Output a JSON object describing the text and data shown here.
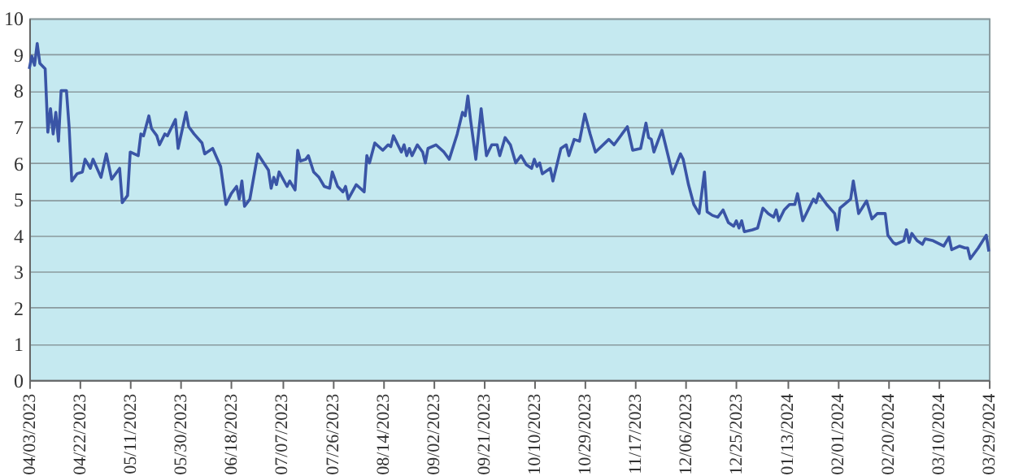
{
  "chart_data": {
    "type": "line",
    "x": [
      "2023-04-03",
      "2023-04-04",
      "2023-04-05",
      "2023-04-06",
      "2023-04-07",
      "2023-04-09",
      "2023-04-10",
      "2023-04-11",
      "2023-04-12",
      "2023-04-13",
      "2023-04-14",
      "2023-04-15",
      "2023-04-17",
      "2023-04-18",
      "2023-04-19",
      "2023-04-21",
      "2023-04-23",
      "2023-04-24",
      "2023-04-26",
      "2023-04-27",
      "2023-04-30",
      "2023-05-02",
      "2023-05-04",
      "2023-05-07",
      "2023-05-08",
      "2023-05-10",
      "2023-05-11",
      "2023-05-14",
      "2023-05-15",
      "2023-05-16",
      "2023-05-18",
      "2023-05-19",
      "2023-05-21",
      "2023-05-22",
      "2023-05-24",
      "2023-05-25",
      "2023-05-28",
      "2023-05-29",
      "2023-06-01",
      "2023-06-02",
      "2023-06-04",
      "2023-06-07",
      "2023-06-08",
      "2023-06-11",
      "2023-06-14",
      "2023-06-16",
      "2023-06-18",
      "2023-06-20",
      "2023-06-21",
      "2023-06-22",
      "2023-06-23",
      "2023-06-25",
      "2023-06-28",
      "2023-07-02",
      "2023-07-03",
      "2023-07-04",
      "2023-07-05",
      "2023-07-06",
      "2023-07-09",
      "2023-07-10",
      "2023-07-12",
      "2023-07-13",
      "2023-07-14",
      "2023-07-16",
      "2023-07-17",
      "2023-07-19",
      "2023-07-21",
      "2023-07-23",
      "2023-07-25",
      "2023-07-26",
      "2023-07-28",
      "2023-07-30",
      "2023-07-31",
      "2023-08-01",
      "2023-08-04",
      "2023-08-07",
      "2023-08-08",
      "2023-08-09",
      "2023-08-11",
      "2023-08-14",
      "2023-08-16",
      "2023-08-17",
      "2023-08-18",
      "2023-08-21",
      "2023-08-22",
      "2023-08-23",
      "2023-08-24",
      "2023-08-25",
      "2023-08-27",
      "2023-08-29",
      "2023-08-30",
      "2023-08-31",
      "2023-09-03",
      "2023-09-06",
      "2023-09-08",
      "2023-09-11",
      "2023-09-13",
      "2023-09-14",
      "2023-09-15",
      "2023-09-16",
      "2023-09-18",
      "2023-09-20",
      "2023-09-22",
      "2023-09-24",
      "2023-09-26",
      "2023-09-27",
      "2023-09-29",
      "2023-10-01",
      "2023-10-03",
      "2023-10-05",
      "2023-10-07",
      "2023-10-09",
      "2023-10-10",
      "2023-10-11",
      "2023-10-12",
      "2023-10-13",
      "2023-10-16",
      "2023-10-17",
      "2023-10-20",
      "2023-10-22",
      "2023-10-23",
      "2023-10-25",
      "2023-10-27",
      "2023-10-29",
      "2023-10-31",
      "2023-11-02",
      "2023-11-07",
      "2023-11-09",
      "2023-11-14",
      "2023-11-16",
      "2023-11-19",
      "2023-11-21",
      "2023-11-22",
      "2023-11-23",
      "2023-11-24",
      "2023-11-27",
      "2023-12-01",
      "2023-12-04",
      "2023-12-05",
      "2023-12-07",
      "2023-12-09",
      "2023-12-11",
      "2023-12-13",
      "2023-12-14",
      "2023-12-16",
      "2023-12-18",
      "2023-12-20",
      "2023-12-22",
      "2023-12-24",
      "2023-12-25",
      "2023-12-26",
      "2023-12-27",
      "2023-12-28",
      "2023-12-31",
      "2024-01-02",
      "2024-01-04",
      "2024-01-06",
      "2024-01-08",
      "2024-01-09",
      "2024-01-10",
      "2024-01-12",
      "2024-01-14",
      "2024-01-16",
      "2024-01-17",
      "2024-01-19",
      "2024-01-23",
      "2024-01-24",
      "2024-01-25",
      "2024-01-28",
      "2024-01-31",
      "2024-02-01",
      "2024-02-02",
      "2024-02-06",
      "2024-02-07",
      "2024-02-09",
      "2024-02-12",
      "2024-02-14",
      "2024-02-16",
      "2024-02-19",
      "2024-02-20",
      "2024-02-22",
      "2024-02-23",
      "2024-02-26",
      "2024-02-27",
      "2024-02-28",
      "2024-02-29",
      "2024-03-02",
      "2024-03-04",
      "2024-03-05",
      "2024-03-08",
      "2024-03-12",
      "2024-03-14",
      "2024-03-15",
      "2024-03-18",
      "2024-03-20",
      "2024-03-21",
      "2024-03-22",
      "2024-03-25",
      "2024-03-28",
      "2024-03-29"
    ],
    "series": [
      {
        "color": "#3a55a6",
        "values": [
          8.6,
          8.95,
          8.7,
          9.3,
          8.75,
          8.6,
          6.85,
          7.5,
          6.8,
          7.4,
          6.6,
          8.0,
          8.0,
          7.0,
          5.5,
          5.7,
          5.75,
          6.1,
          5.85,
          6.1,
          5.6,
          6.25,
          5.55,
          5.85,
          4.9,
          5.1,
          6.3,
          6.2,
          6.8,
          6.75,
          7.3,
          6.95,
          6.75,
          6.5,
          6.8,
          6.75,
          7.2,
          6.4,
          7.4,
          7.0,
          6.8,
          6.55,
          6.25,
          6.4,
          5.9,
          4.85,
          5.15,
          5.35,
          5.0,
          5.5,
          4.8,
          5.0,
          6.25,
          5.8,
          5.3,
          5.6,
          5.4,
          5.75,
          5.35,
          5.5,
          5.25,
          6.35,
          6.05,
          6.1,
          6.2,
          5.75,
          5.6,
          5.35,
          5.3,
          5.75,
          5.35,
          5.2,
          5.35,
          5.0,
          5.4,
          5.2,
          6.2,
          6.0,
          6.55,
          6.35,
          6.5,
          6.45,
          6.75,
          6.3,
          6.5,
          6.2,
          6.4,
          6.2,
          6.5,
          6.3,
          6.0,
          6.4,
          6.5,
          6.3,
          6.1,
          6.8,
          7.4,
          7.3,
          7.85,
          7.2,
          6.1,
          7.5,
          6.2,
          6.5,
          6.5,
          6.2,
          6.7,
          6.5,
          6.0,
          6.2,
          5.95,
          5.85,
          6.1,
          5.9,
          6.0,
          5.7,
          5.85,
          5.5,
          6.4,
          6.5,
          6.2,
          6.65,
          6.6,
          7.35,
          6.8,
          6.3,
          6.65,
          6.5,
          7.0,
          6.35,
          6.4,
          7.1,
          6.7,
          6.65,
          6.3,
          6.9,
          5.7,
          6.25,
          6.1,
          5.4,
          4.85,
          4.6,
          5.75,
          4.65,
          4.55,
          4.5,
          4.7,
          4.35,
          4.25,
          4.4,
          4.2,
          4.4,
          4.1,
          4.15,
          4.2,
          4.75,
          4.6,
          4.5,
          4.7,
          4.4,
          4.7,
          4.85,
          4.85,
          5.15,
          4.4,
          5.0,
          4.9,
          5.15,
          4.85,
          4.6,
          4.15,
          4.75,
          5.0,
          5.5,
          4.6,
          4.95,
          4.45,
          4.6,
          4.6,
          4.0,
          3.8,
          3.75,
          3.85,
          4.15,
          3.8,
          4.05,
          3.85,
          3.75,
          3.9,
          3.85,
          3.7,
          3.95,
          3.6,
          3.7,
          3.65,
          3.65,
          3.35,
          3.65,
          4.0,
          3.55
        ]
      }
    ],
    "xlim": [
      "2023-04-03",
      "2024-03-29"
    ],
    "xticks": [
      {
        "value": "2023-04-03",
        "label": "04/03/2023"
      },
      {
        "value": "2023-04-22",
        "label": "04/22/2023"
      },
      {
        "value": "2023-05-11",
        "label": "05/11/2023"
      },
      {
        "value": "2023-05-30",
        "label": "05/30/2023"
      },
      {
        "value": "2023-06-18",
        "label": "06/18/2023"
      },
      {
        "value": "2023-07-07",
        "label": "07/07/2023"
      },
      {
        "value": "2023-07-26",
        "label": "07/26/2023"
      },
      {
        "value": "2023-08-14",
        "label": "08/14/2023"
      },
      {
        "value": "2023-09-02",
        "label": "09/02/2023"
      },
      {
        "value": "2023-09-21",
        "label": "09/21/2023"
      },
      {
        "value": "2023-10-10",
        "label": "10/10/2023"
      },
      {
        "value": "2023-10-29",
        "label": "10/29/2023"
      },
      {
        "value": "2023-11-17",
        "label": "11/17/2023"
      },
      {
        "value": "2023-12-06",
        "label": "12/06/2023"
      },
      {
        "value": "2023-12-25",
        "label": "12/25/2023"
      },
      {
        "value": "2024-01-13",
        "label": "01/13/2024"
      },
      {
        "value": "2024-02-01",
        "label": "02/01/2024"
      },
      {
        "value": "2024-02-20",
        "label": "02/20/2024"
      },
      {
        "value": "2024-03-10",
        "label": "03/10/2024"
      },
      {
        "value": "2024-03-29",
        "label": "03/29/2024"
      }
    ],
    "ylim": [
      0,
      10
    ],
    "yticks": [
      0,
      1,
      2,
      3,
      4,
      5,
      6,
      7,
      8,
      9,
      10
    ],
    "grid": "y",
    "legend": false,
    "marker": "none",
    "line_style": "solid"
  }
}
